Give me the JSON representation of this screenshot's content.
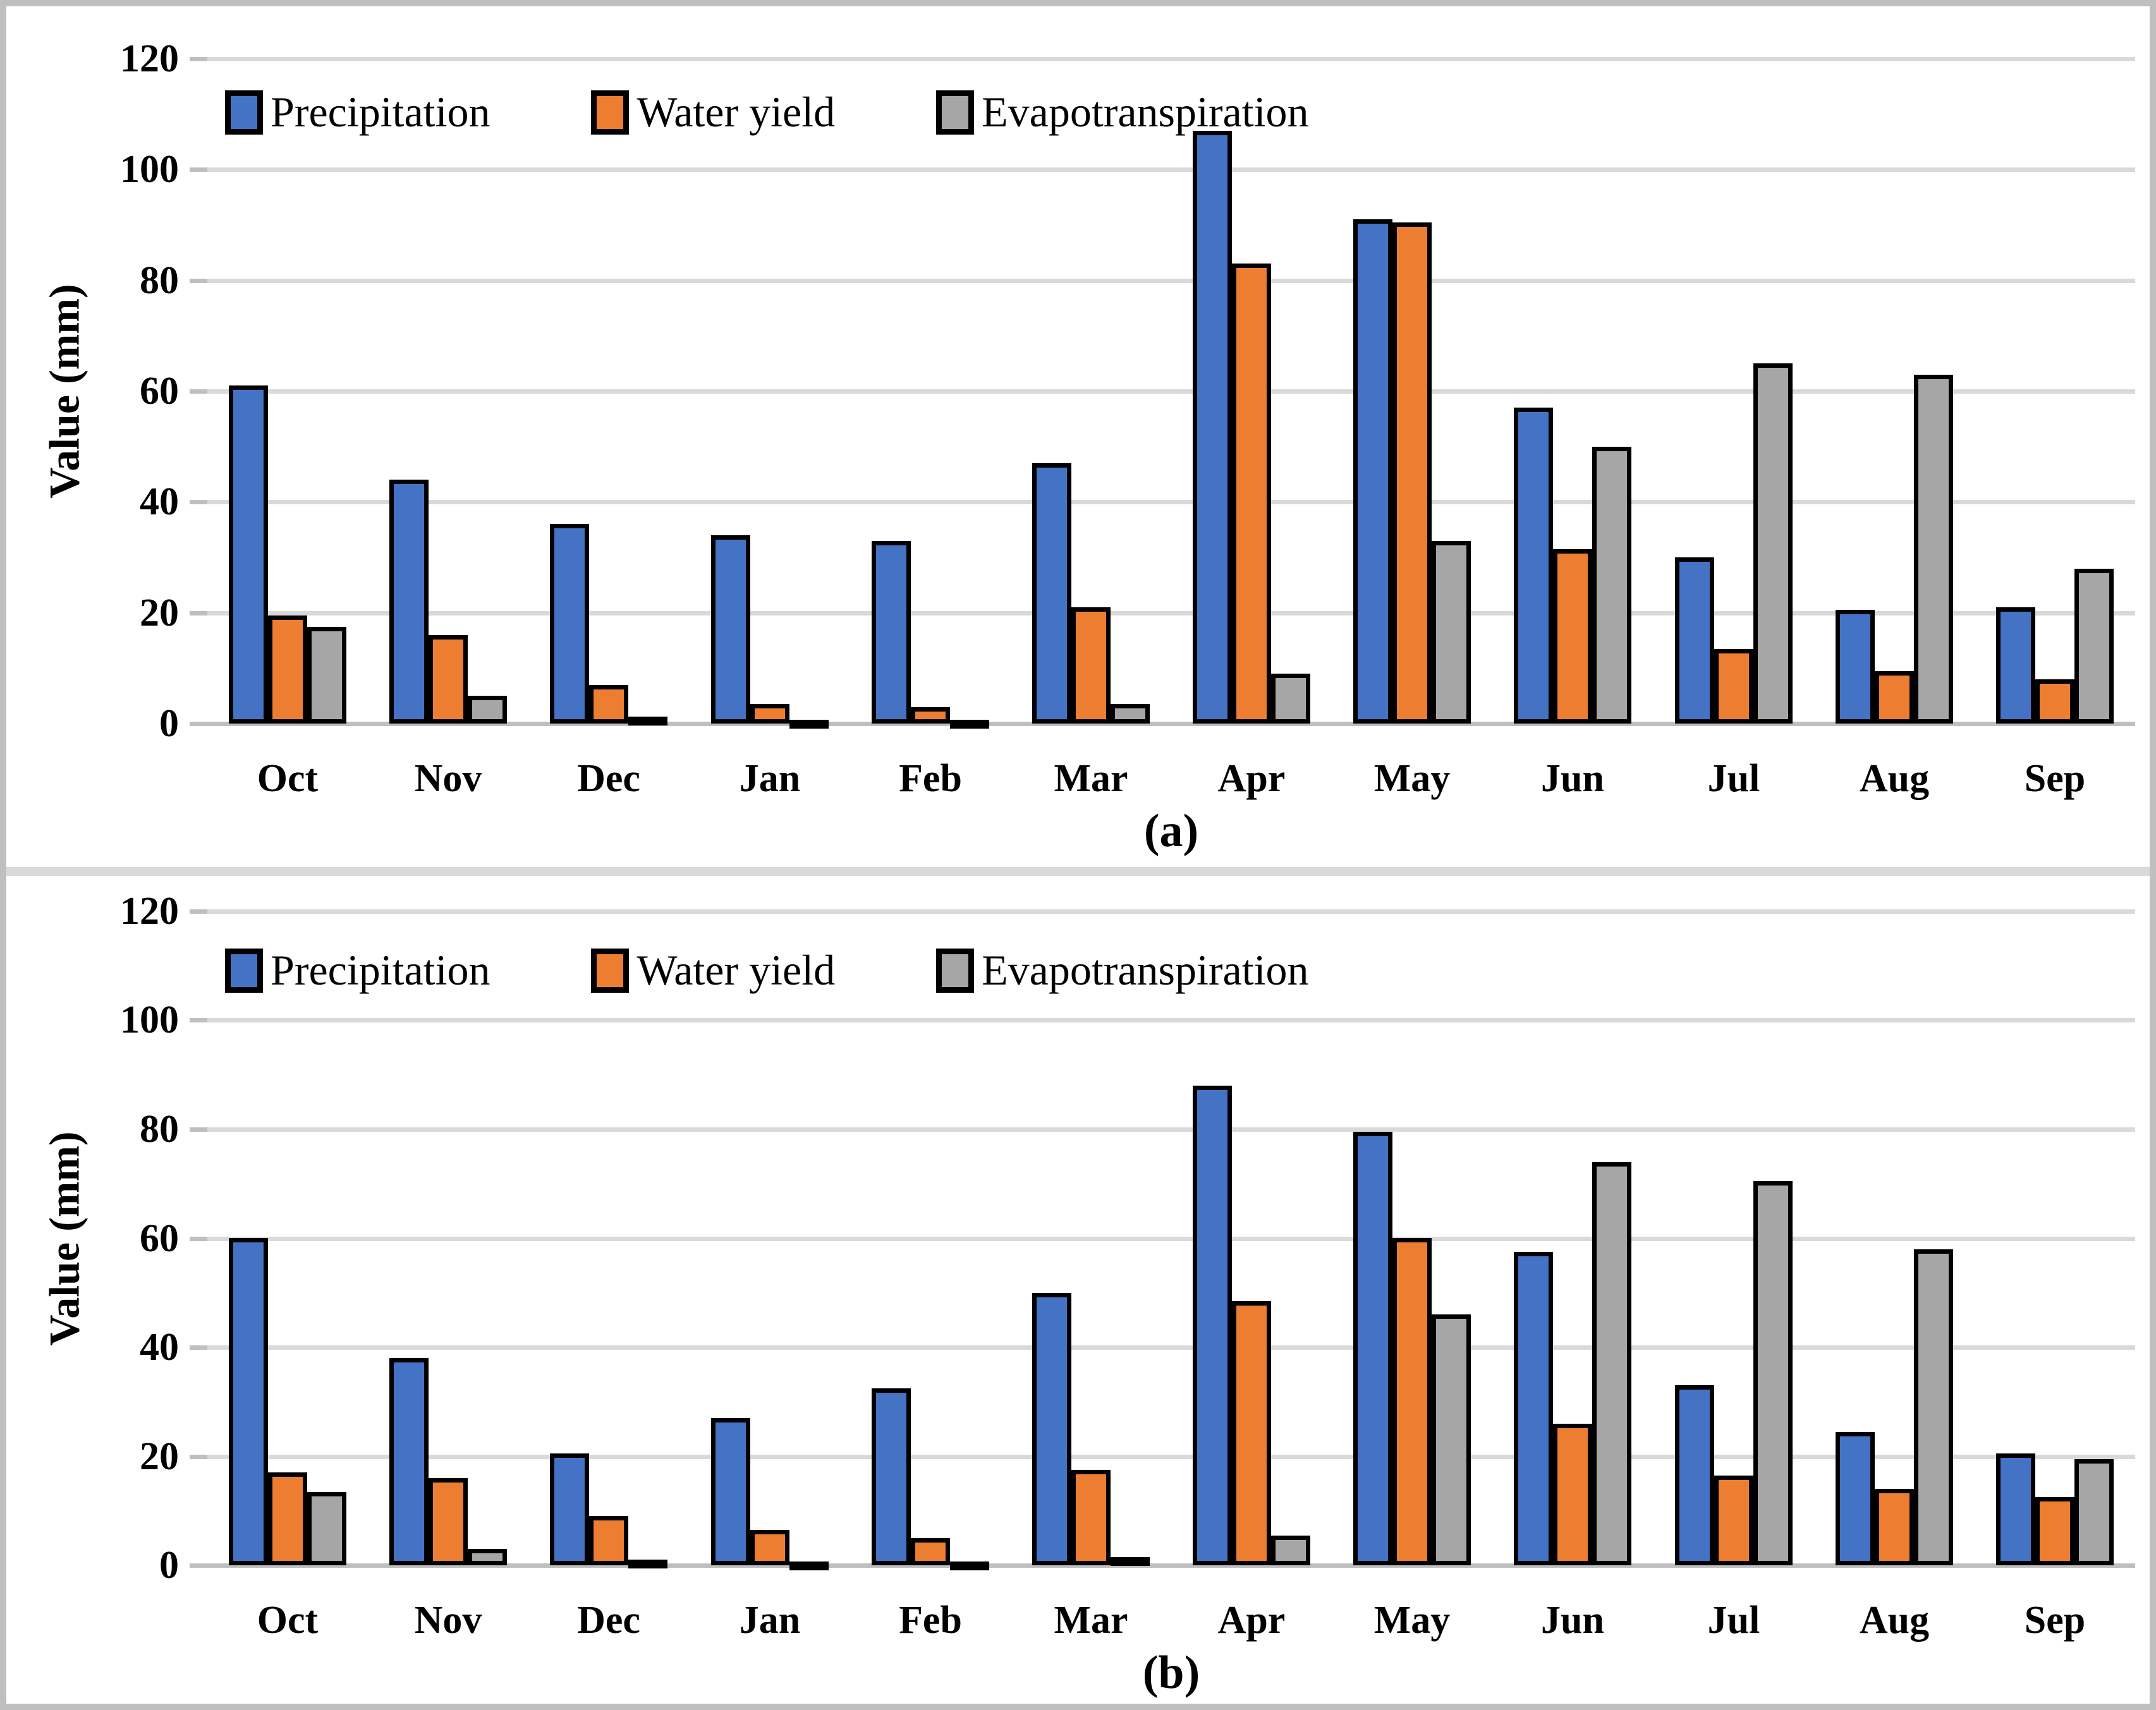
{
  "figure": {
    "y_axis_label": "Value (mm)",
    "months": [
      "Oct",
      "Nov",
      "Dec",
      "Jan",
      "Feb",
      "Mar",
      "Apr",
      "May",
      "Jun",
      "Jul",
      "Aug",
      "Sep"
    ],
    "legend": [
      "Precipitation",
      "Water yield",
      "Evapotranspiration"
    ],
    "colors": {
      "precipitation": "#4472C4",
      "water_yield": "#ED7D31",
      "evapotranspiration": "#A6A6A6",
      "bar_border": "#000000",
      "gridline": "#D9D9D9",
      "axis_line": "#BFBFBF",
      "panel_border": "#BFBFBF",
      "background": "#FFFFFF"
    }
  },
  "chart_data": [
    {
      "type": "bar",
      "panel_label": "(a)",
      "title": "",
      "xlabel": "",
      "ylabel": "Value (mm)",
      "ylim": [
        0,
        120
      ],
      "ytick_step": 20,
      "grid": true,
      "legend_position": "top-left-inside",
      "categories": [
        "Oct",
        "Nov",
        "Dec",
        "Jan",
        "Feb",
        "Mar",
        "Apr",
        "May",
        "Jun",
        "Jul",
        "Aug",
        "Sep"
      ],
      "series": [
        {
          "name": "Precipitation",
          "color": "#4472C4",
          "values": [
            61,
            44,
            36,
            34,
            33,
            47,
            107,
            91,
            57,
            30,
            20.5,
            21
          ]
        },
        {
          "name": "Water yield",
          "color": "#ED7D31",
          "values": [
            19.5,
            16,
            7,
            3.5,
            3,
            21,
            83,
            90.5,
            31.5,
            13.5,
            9.5,
            8
          ]
        },
        {
          "name": "Evapotranspiration",
          "color": "#A6A6A6",
          "values": [
            17.5,
            5,
            1.2,
            0.7,
            0.7,
            3.5,
            9,
            33,
            50,
            65,
            63,
            28
          ]
        }
      ]
    },
    {
      "type": "bar",
      "panel_label": "(b)",
      "title": "",
      "xlabel": "",
      "ylabel": "Value (mm)",
      "ylim": [
        0,
        120
      ],
      "ytick_step": 20,
      "grid": true,
      "legend_position": "top-left-inside",
      "categories": [
        "Oct",
        "Nov",
        "Dec",
        "Jan",
        "Feb",
        "Mar",
        "Apr",
        "May",
        "Jun",
        "Jul",
        "Aug",
        "Sep"
      ],
      "series": [
        {
          "name": "Precipitation",
          "color": "#4472C4",
          "values": [
            60,
            38,
            20.5,
            27,
            32.5,
            50,
            88,
            79.5,
            57.5,
            33,
            24.5,
            20.5
          ]
        },
        {
          "name": "Water yield",
          "color": "#ED7D31",
          "values": [
            17,
            16,
            9,
            6.5,
            5,
            17.5,
            48.5,
            60,
            26,
            16.5,
            14,
            12.5
          ]
        },
        {
          "name": "Evapotranspiration",
          "color": "#A6A6A6",
          "values": [
            13.5,
            3,
            1,
            0.7,
            0.7,
            1.5,
            5.5,
            46,
            74,
            70.5,
            58,
            19.5
          ]
        }
      ]
    }
  ]
}
